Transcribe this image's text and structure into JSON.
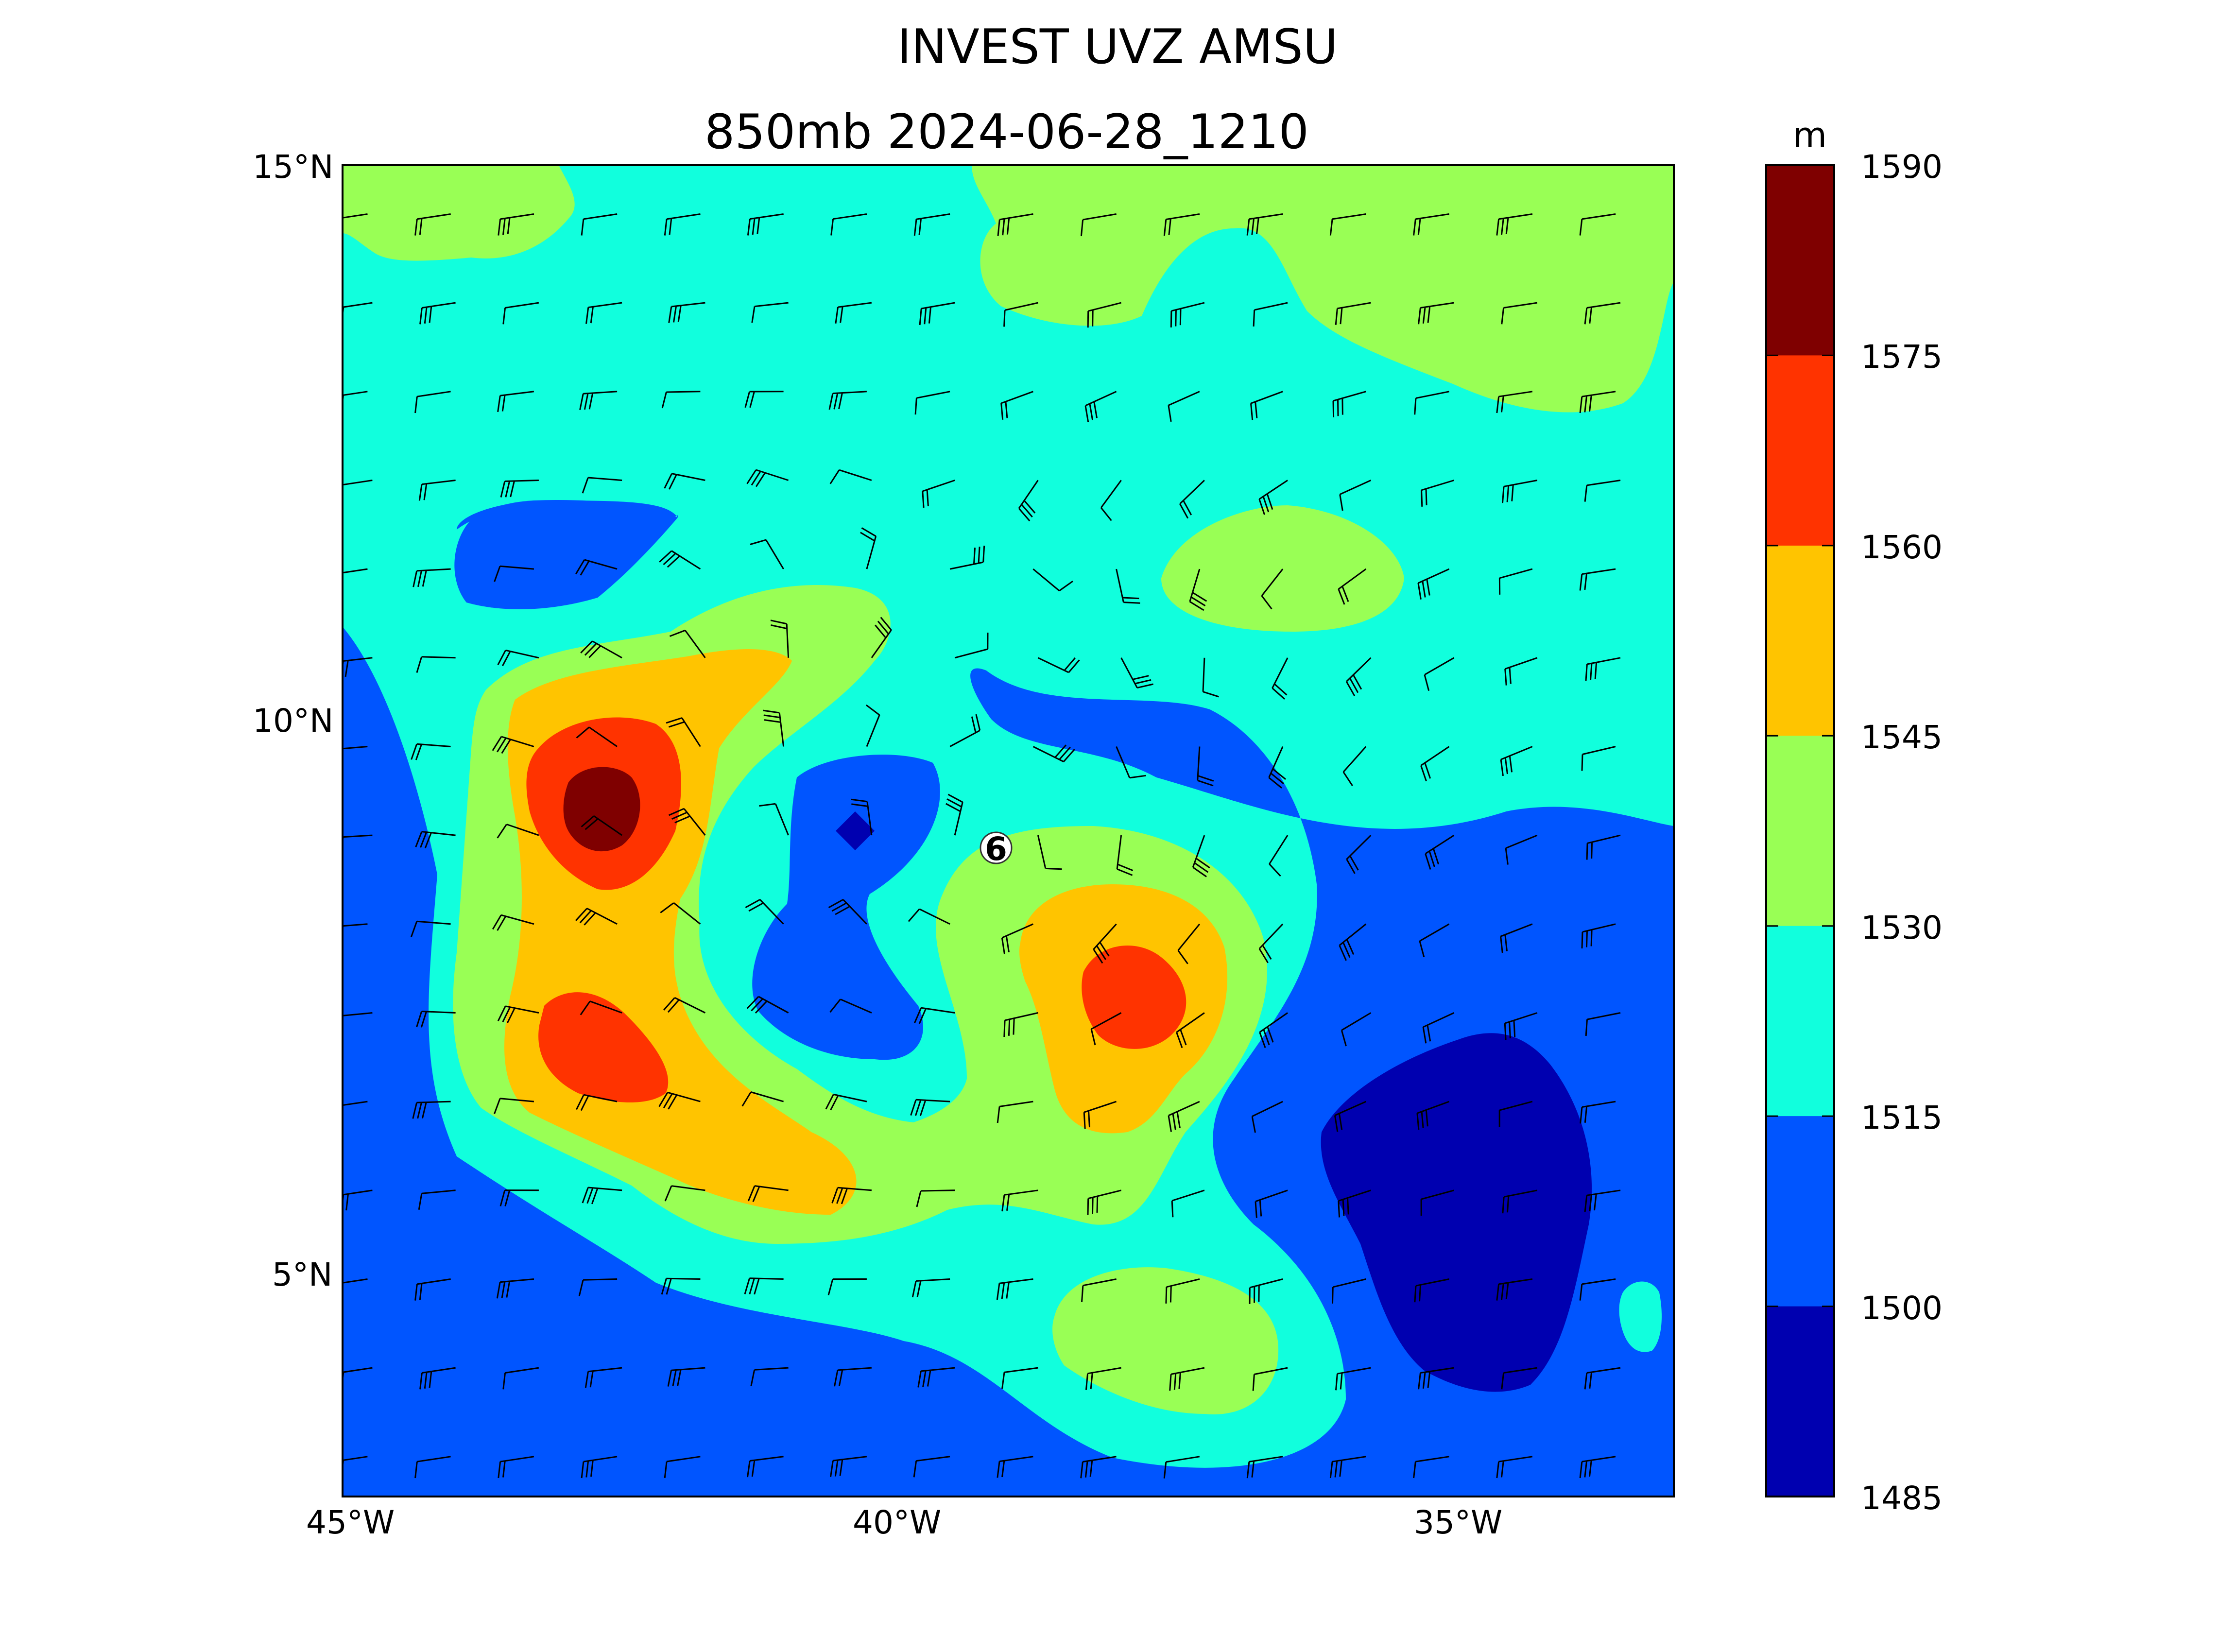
{
  "title": "INVEST UVZ AMSU",
  "subtitle": "850mb 2024-06-28_1210",
  "storm_marker": "6",
  "map": {
    "lon_range": [
      -45,
      -33
    ],
    "lat_range": [
      2,
      15
    ],
    "x_ticks": [
      "45°W",
      "40°W",
      "35°W"
    ],
    "y_ticks": [
      "15°N",
      "10°N",
      "5°N"
    ]
  },
  "colorbar": {
    "unit": "m",
    "levels": [
      "1590",
      "1575",
      "1560",
      "1545",
      "1530",
      "1515",
      "1500",
      "1485"
    ],
    "colors": [
      "#7f0000",
      "#ff3300",
      "#ffc400",
      "#99ff55",
      "#11ffdd",
      "#0055ff",
      "#0000b0"
    ]
  },
  "chart_data": {
    "type": "heatmap",
    "title": "INVEST UVZ AMSU",
    "subtitle": "850mb 2024-06-28_1210",
    "variable": "850mb geopotential height with wind barbs",
    "unit": "m",
    "contour_levels": [
      1485,
      1500,
      1515,
      1530,
      1545,
      1560,
      1575,
      1590
    ],
    "features": [
      {
        "type": "max",
        "lon": -42.5,
        "lat": 9.3,
        "value_range": [
          1575,
          1590
        ]
      },
      {
        "type": "max",
        "lon": -42.7,
        "lat": 6.9,
        "value_range": [
          1560,
          1575
        ]
      },
      {
        "type": "max",
        "lon": -37.9,
        "lat": 7.7,
        "value_range": [
          1560,
          1575
        ]
      },
      {
        "type": "min",
        "lon": -40.4,
        "lat": 8.9,
        "value_range": [
          1485,
          1500
        ]
      },
      {
        "type": "min",
        "lon": -35.0,
        "lat": 5.2,
        "value_range": [
          1485,
          1500
        ]
      },
      {
        "type": "storm_center",
        "lon": -39.2,
        "lat": 8.8,
        "label": "6"
      }
    ]
  }
}
